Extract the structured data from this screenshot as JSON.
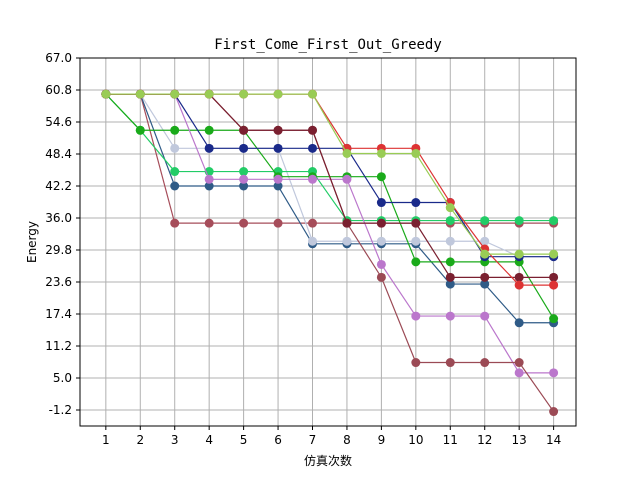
{
  "chart_data": {
    "type": "line",
    "title": "First_Come_First_Out_Greedy",
    "xlabel": "仿真次数",
    "ylabel": "Energy",
    "x": [
      1,
      2,
      3,
      4,
      5,
      6,
      7,
      8,
      9,
      10,
      11,
      12,
      13,
      14
    ],
    "xticks": [
      "1",
      "2",
      "3",
      "4",
      "5",
      "6",
      "7",
      "8",
      "9",
      "10",
      "11",
      "12",
      "13",
      "14"
    ],
    "yticks": [
      -1.2,
      5.0,
      11.2,
      17.4,
      23.6,
      29.8,
      36.0,
      42.2,
      48.4,
      54.6,
      60.8,
      67.0
    ],
    "ytick_labels": [
      "-1.2",
      "5.0",
      "11.2",
      "17.4",
      "23.6",
      "29.8",
      "36.0",
      "42.2",
      "48.4",
      "54.6",
      "60.8",
      "67.0"
    ],
    "xlim": [
      0.25,
      14.65
    ],
    "ylim": [
      -4.3,
      67.0
    ],
    "grid": true,
    "series": [
      {
        "color": "#a64d5a",
        "values": [
          60.0,
          60.0,
          35.0,
          35.0,
          35.0,
          35.0,
          35.0,
          35.0,
          35.0,
          35.0,
          35.0,
          35.0,
          35.0,
          35.0
        ]
      },
      {
        "color": "#2f5b87",
        "values": [
          60.0,
          60.0,
          42.2,
          42.2,
          42.2,
          42.2,
          31.0,
          31.0,
          31.0,
          31.0,
          23.2,
          23.2,
          15.7,
          15.7
        ]
      },
      {
        "color": "#c0c8dc",
        "values": [
          60.0,
          60.0,
          49.5,
          49.5,
          49.5,
          49.5,
          31.5,
          31.5,
          31.5,
          31.5,
          31.5,
          31.5,
          28.5,
          28.5
        ]
      },
      {
        "color": "#22cc66",
        "values": [
          60.0,
          53.0,
          45.0,
          45.0,
          45.0,
          45.0,
          45.0,
          35.5,
          35.5,
          35.5,
          35.5,
          35.5,
          35.5,
          35.5
        ]
      },
      {
        "color": "#1aaa1a",
        "values": [
          60.0,
          53.0,
          53.0,
          53.0,
          53.0,
          44.0,
          44.0,
          44.0,
          44.0,
          27.5,
          27.5,
          27.5,
          27.5,
          16.5
        ]
      },
      {
        "color": "#bb77cc",
        "values": [
          60.0,
          60.0,
          60.0,
          43.5,
          43.5,
          43.5,
          43.5,
          43.5,
          27.0,
          17.0,
          17.0,
          17.0,
          6.0,
          6.0
        ]
      },
      {
        "color": "#9b4a55",
        "values": [
          60.0,
          60.0,
          60.0,
          60.0,
          53.0,
          53.0,
          53.0,
          35.0,
          24.5,
          8.0,
          8.0,
          8.0,
          8.0,
          -1.5
        ]
      },
      {
        "color": "#1a2a8a",
        "values": [
          60.0,
          60.0,
          60.0,
          49.5,
          49.5,
          49.5,
          49.5,
          49.5,
          39.0,
          39.0,
          39.0,
          28.5,
          28.5,
          28.5
        ]
      },
      {
        "color": "#7a2030",
        "values": [
          60.0,
          60.0,
          60.0,
          60.0,
          53.0,
          53.0,
          53.0,
          35.0,
          35.0,
          35.0,
          24.5,
          24.5,
          24.5,
          24.5
        ]
      },
      {
        "color": "#dd3333",
        "values": [
          60.0,
          60.0,
          60.0,
          60.0,
          60.0,
          60.0,
          60.0,
          49.5,
          49.5,
          49.5,
          39.0,
          30.0,
          23.0,
          23.0
        ]
      },
      {
        "color": "#99cc55",
        "values": [
          60.0,
          60.0,
          60.0,
          60.0,
          60.0,
          60.0,
          60.0,
          48.5,
          48.5,
          48.5,
          38.0,
          29.0,
          29.0,
          29.0
        ]
      }
    ]
  }
}
